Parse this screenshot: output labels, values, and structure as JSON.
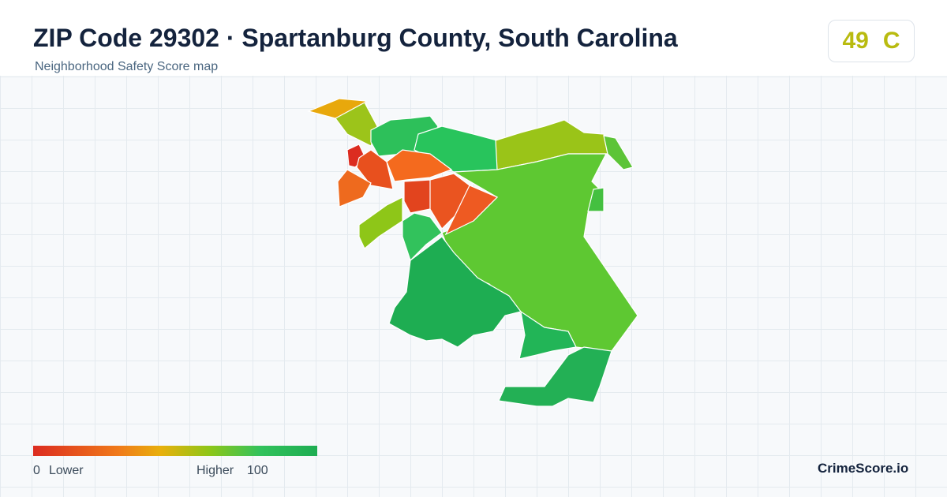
{
  "header": {
    "title": "ZIP Code 29302 · Spartanburg County, South Carolina",
    "subtitle": "Neighborhood Safety Score map"
  },
  "score": {
    "value": "49",
    "grade": "C"
  },
  "legend": {
    "min": "0",
    "min_label": "Lower",
    "max_label": "Higher",
    "max": "100"
  },
  "brand": "CrimeScore.io"
}
